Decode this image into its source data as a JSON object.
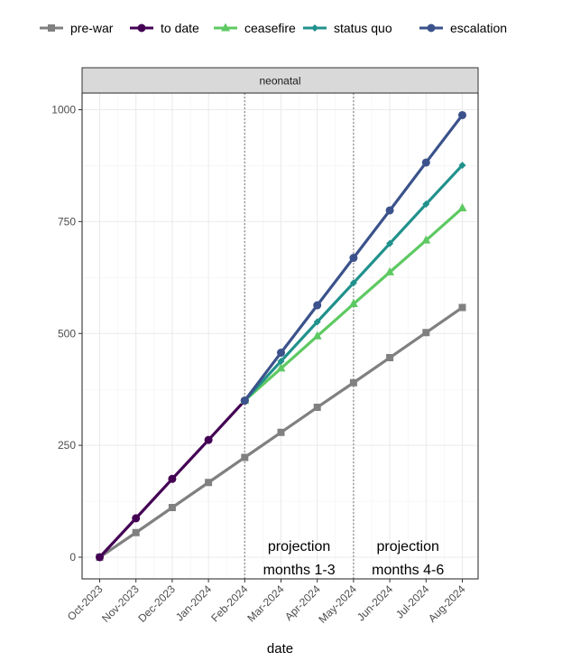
{
  "chart_data": {
    "type": "line",
    "facet": "neonatal",
    "xlabel": "date",
    "ylabel": "",
    "ylim": [
      0,
      1000
    ],
    "y_ticks": [
      0,
      250,
      500,
      750,
      1000
    ],
    "x_ticks": [
      "Oct-2023",
      "Nov-2023",
      "Dec-2023",
      "Jan-2024",
      "Feb-2024",
      "Mar-2024",
      "Apr-2024",
      "May-2024",
      "Jun-2024",
      "Jul-2024",
      "Aug-2024"
    ],
    "grid": true,
    "legend_position": "top",
    "vlines": [
      "Feb-2024",
      "May-2024"
    ],
    "annotations": [
      {
        "line1": "projection",
        "line2": "months 1-3",
        "between": [
          "Feb-2024",
          "May-2024"
        ]
      },
      {
        "line1": "projection",
        "line2": "months 4-6",
        "between": [
          "May-2024",
          "Aug-2024"
        ]
      }
    ],
    "series": [
      {
        "name": "pre-war",
        "color": "#808080",
        "marker": "square",
        "x": [
          "Oct-2023",
          "Nov-2023",
          "Dec-2023",
          "Jan-2024",
          "Feb-2024",
          "Mar-2024",
          "Apr-2024",
          "May-2024",
          "Jun-2024",
          "Jul-2024",
          "Aug-2024"
        ],
        "values": [
          0,
          55,
          111,
          167,
          223,
          279,
          335,
          390,
          446,
          502,
          558
        ]
      },
      {
        "name": "to date",
        "color": "#440154",
        "marker": "circle",
        "x": [
          "Oct-2023",
          "Nov-2023",
          "Dec-2023",
          "Jan-2024",
          "Feb-2024"
        ],
        "values": [
          0,
          87,
          175,
          262,
          350
        ]
      },
      {
        "name": "ceasefire",
        "color": "#5ec962",
        "marker": "triangle",
        "x": [
          "Feb-2024",
          "Mar-2024",
          "Apr-2024",
          "May-2024",
          "Jun-2024",
          "Jul-2024",
          "Aug-2024"
        ],
        "values": [
          350,
          422,
          494,
          566,
          637,
          708,
          780
        ]
      },
      {
        "name": "status quo",
        "color": "#21918c",
        "marker": "diamond",
        "x": [
          "Feb-2024",
          "Mar-2024",
          "Apr-2024",
          "May-2024",
          "Jun-2024",
          "Jul-2024",
          "Aug-2024"
        ],
        "values": [
          350,
          438,
          526,
          613,
          701,
          789,
          876
        ]
      },
      {
        "name": "escalation",
        "color": "#3b528b",
        "marker": "circle",
        "x": [
          "Feb-2024",
          "Mar-2024",
          "Apr-2024",
          "May-2024",
          "Jun-2024",
          "Jul-2024",
          "Aug-2024"
        ],
        "values": [
          350,
          457,
          563,
          669,
          775,
          882,
          988
        ]
      }
    ]
  }
}
